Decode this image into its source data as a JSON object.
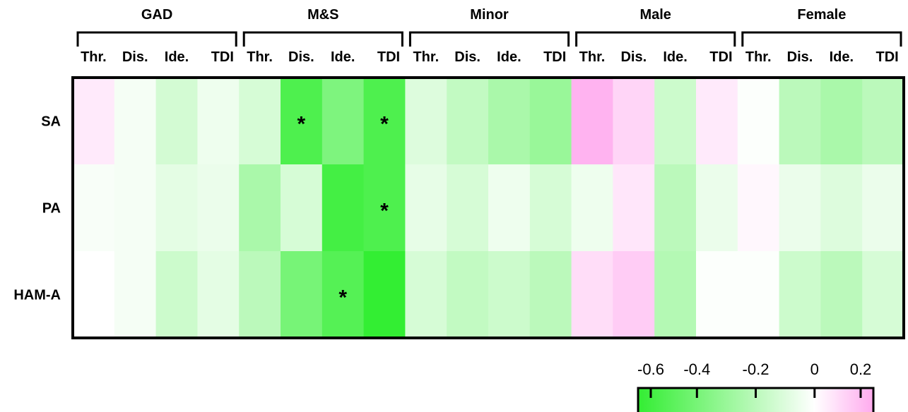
{
  "chart_data": {
    "type": "heatmap",
    "groups": [
      "GAD",
      "M&S",
      "Minor",
      "Male",
      "Female"
    ],
    "columns": [
      "Thr.",
      "Dis.",
      "Ide.",
      "TDI"
    ],
    "rows": [
      "SA",
      "PA",
      "HAM-A"
    ],
    "values": {
      "SA": [
        [
          0.05,
          -0.03,
          -0.13,
          -0.05
        ],
        [
          -0.12,
          -0.52,
          -0.38,
          -0.52
        ],
        [
          -0.1,
          -0.18,
          -0.25,
          -0.3
        ],
        [
          0.18,
          0.1,
          -0.15,
          0.05
        ],
        [
          -0.01,
          -0.2,
          -0.25,
          -0.2
        ]
      ],
      "PA": [
        [
          -0.02,
          -0.03,
          -0.08,
          -0.06
        ],
        [
          -0.25,
          -0.12,
          -0.55,
          -0.52
        ],
        [
          -0.07,
          -0.12,
          -0.05,
          -0.12
        ],
        [
          -0.05,
          0.06,
          -0.2,
          -0.06
        ],
        [
          0.02,
          -0.06,
          -0.1,
          -0.06
        ]
      ],
      "HAM-A": [
        [
          0.0,
          -0.03,
          -0.15,
          -0.08
        ],
        [
          -0.2,
          -0.4,
          -0.5,
          -0.62
        ],
        [
          -0.12,
          -0.18,
          -0.15,
          -0.2
        ],
        [
          0.08,
          0.12,
          -0.22,
          -0.01
        ],
        [
          -0.01,
          -0.15,
          -0.2,
          -0.12
        ]
      ]
    },
    "significant": [
      {
        "row": "SA",
        "group": "M&S",
        "column": "Dis."
      },
      {
        "row": "SA",
        "group": "M&S",
        "column": "TDI"
      },
      {
        "row": "PA",
        "group": "M&S",
        "column": "TDI"
      },
      {
        "row": "HAM-A",
        "group": "M&S",
        "column": "Ide."
      }
    ],
    "significance_marker": "*",
    "colorbar": {
      "range": [
        -0.6,
        0.2
      ],
      "ticks": [
        -0.6,
        -0.4,
        -0.2,
        0,
        0.2
      ],
      "tick_labels": [
        "-0.6",
        "-0.4",
        "-0.2",
        "0",
        "0.2"
      ],
      "colors": {
        "negative": "#33ee33",
        "zero": "#ffffff",
        "positive": "#ffaaee"
      }
    }
  }
}
